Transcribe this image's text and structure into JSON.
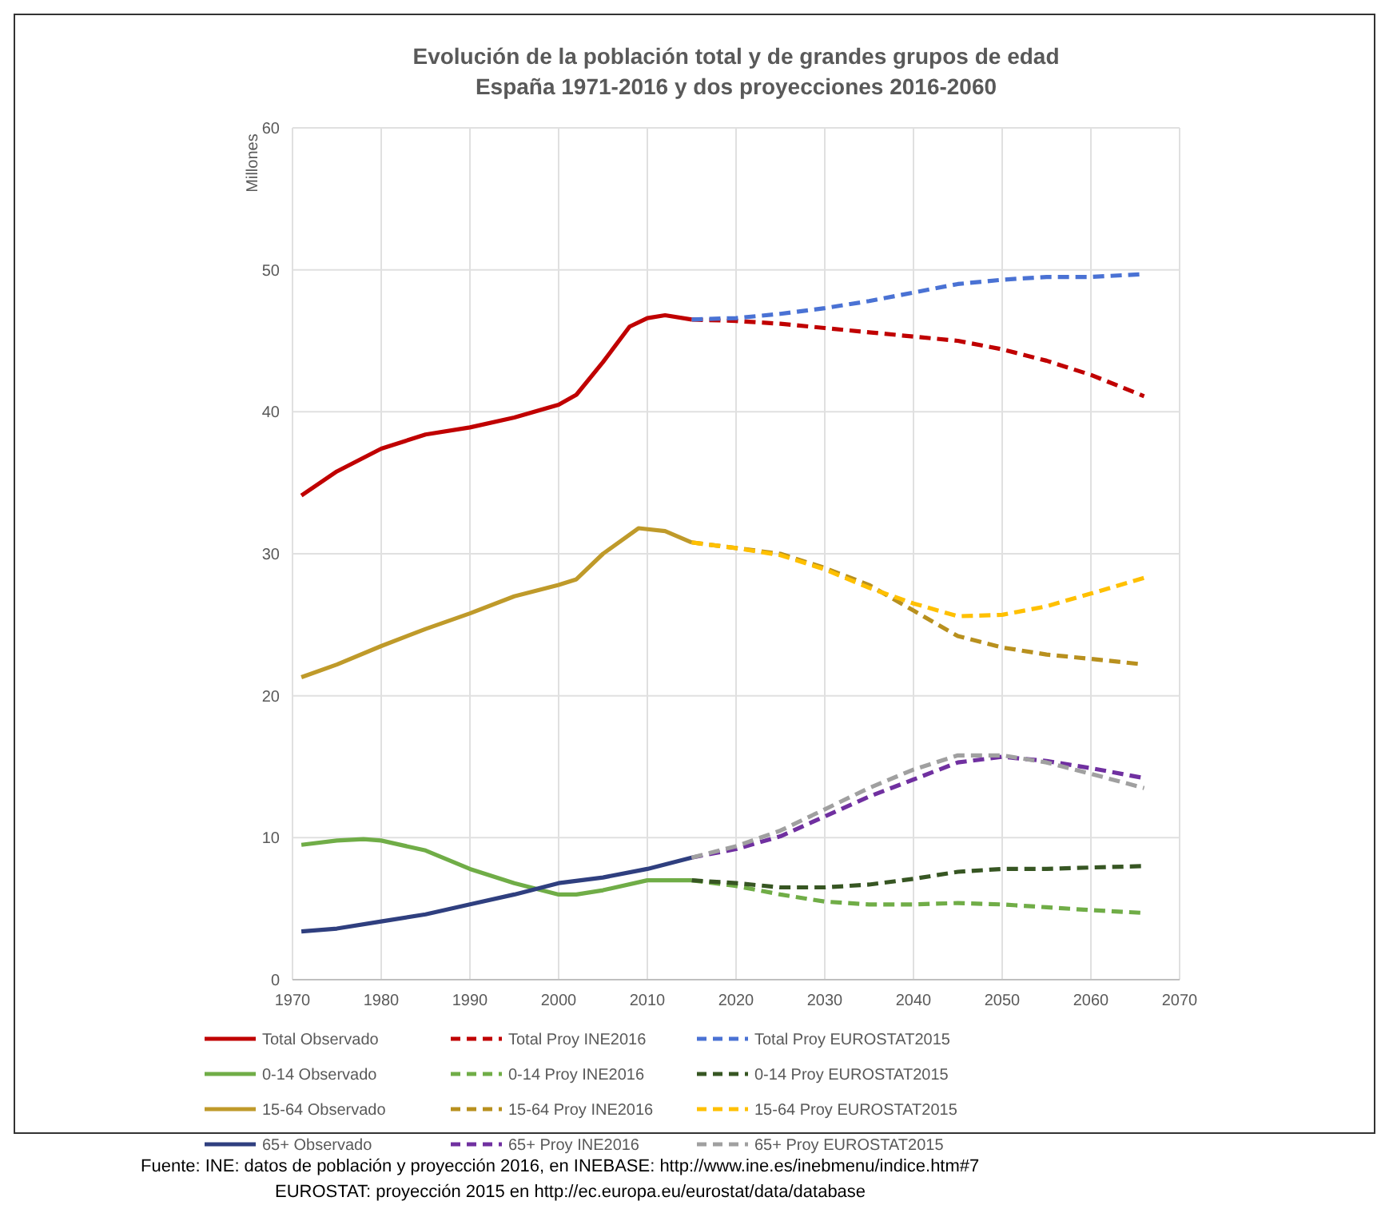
{
  "chart_data": {
    "type": "line",
    "title": "Evolución de la población total y de grandes grupos de edad",
    "subtitle": "España 1971-2016 y  dos proyecciones 2016-2060",
    "ylabel": "Millones",
    "xlim": [
      1970,
      2070
    ],
    "xticks": [
      1970,
      1980,
      1990,
      2000,
      2010,
      2020,
      2030,
      2040,
      2050,
      2060,
      2070
    ],
    "ylim": [
      0,
      60
    ],
    "yticks": [
      0,
      10,
      20,
      30,
      40,
      50,
      60
    ],
    "grid": true,
    "legend": "bottom",
    "marker": "none",
    "series": [
      {
        "name": "Total Observado",
        "color": "#c00000",
        "line_style": "solid",
        "x": [
          1971,
          1975,
          1980,
          1985,
          1990,
          1995,
          2000,
          2002,
          2005,
          2008,
          2010,
          2012,
          2015
        ],
        "values": [
          34.1,
          35.8,
          37.4,
          38.4,
          38.9,
          39.6,
          40.5,
          41.2,
          43.5,
          46.0,
          46.6,
          46.8,
          46.5
        ]
      },
      {
        "name": "Total Proy INE2016",
        "color": "#c00000",
        "line_style": "dashed",
        "x": [
          2015,
          2020,
          2025,
          2030,
          2035,
          2040,
          2045,
          2050,
          2055,
          2060,
          2066
        ],
        "values": [
          46.5,
          46.4,
          46.2,
          45.9,
          45.6,
          45.3,
          45.0,
          44.4,
          43.6,
          42.6,
          41.1
        ]
      },
      {
        "name": "Total Proy EUROSTAT2015",
        "color": "#4a72d4",
        "line_style": "dashed",
        "x": [
          2015,
          2020,
          2025,
          2030,
          2035,
          2040,
          2045,
          2050,
          2055,
          2060,
          2066
        ],
        "values": [
          46.5,
          46.6,
          46.9,
          47.3,
          47.8,
          48.4,
          49.0,
          49.3,
          49.5,
          49.5,
          49.7
        ]
      },
      {
        "name": "0-14 Observado",
        "color": "#70ad47",
        "line_style": "solid",
        "x": [
          1971,
          1975,
          1978,
          1980,
          1985,
          1990,
          1995,
          2000,
          2002,
          2005,
          2010,
          2015
        ],
        "values": [
          9.5,
          9.8,
          9.9,
          9.8,
          9.1,
          7.8,
          6.8,
          6.0,
          6.0,
          6.3,
          7.0,
          7.0
        ]
      },
      {
        "name": "0-14 Proy INE2016",
        "color": "#70ad47",
        "line_style": "dashed",
        "x": [
          2015,
          2020,
          2025,
          2030,
          2035,
          2040,
          2045,
          2050,
          2055,
          2060,
          2066
        ],
        "values": [
          7.0,
          6.6,
          6.0,
          5.5,
          5.3,
          5.3,
          5.4,
          5.3,
          5.1,
          4.9,
          4.7
        ]
      },
      {
        "name": "0-14 Proy EUROSTAT2015",
        "color": "#375623",
        "line_style": "dashed",
        "x": [
          2015,
          2020,
          2025,
          2030,
          2035,
          2040,
          2045,
          2050,
          2055,
          2060,
          2066
        ],
        "values": [
          7.0,
          6.8,
          6.5,
          6.5,
          6.7,
          7.1,
          7.6,
          7.8,
          7.8,
          7.9,
          8.0
        ]
      },
      {
        "name": "15-64 Observado",
        "color": "#bf9a2a",
        "line_style": "solid",
        "x": [
          1971,
          1975,
          1980,
          1985,
          1990,
          1995,
          2000,
          2002,
          2005,
          2009,
          2012,
          2015
        ],
        "values": [
          21.3,
          22.2,
          23.5,
          24.7,
          25.8,
          27.0,
          27.8,
          28.2,
          30.0,
          31.8,
          31.6,
          30.8
        ]
      },
      {
        "name": "15-64 Proy INE2016",
        "color": "#b8901e",
        "line_style": "dashed",
        "x": [
          2015,
          2020,
          2025,
          2030,
          2035,
          2040,
          2045,
          2050,
          2055,
          2060,
          2066
        ],
        "values": [
          30.8,
          30.4,
          30.0,
          29.0,
          27.8,
          26.0,
          24.2,
          23.4,
          22.9,
          22.6,
          22.2
        ]
      },
      {
        "name": "15-64 Proy EUROSTAT2015",
        "color": "#ffc000",
        "line_style": "dashed",
        "x": [
          2015,
          2020,
          2025,
          2030,
          2035,
          2040,
          2045,
          2050,
          2055,
          2060,
          2066
        ],
        "values": [
          30.8,
          30.4,
          29.9,
          28.9,
          27.6,
          26.5,
          25.6,
          25.7,
          26.3,
          27.2,
          28.3
        ]
      },
      {
        "name": "65+ Observado",
        "color": "#2f3f7f",
        "line_style": "solid",
        "x": [
          1971,
          1975,
          1980,
          1985,
          1990,
          1995,
          2000,
          2005,
          2010,
          2015
        ],
        "values": [
          3.4,
          3.6,
          4.1,
          4.6,
          5.3,
          6.0,
          6.8,
          7.2,
          7.8,
          8.6
        ]
      },
      {
        "name": "65+ Proy INE2016",
        "color": "#7030a0",
        "line_style": "dashed",
        "x": [
          2015,
          2020,
          2025,
          2030,
          2035,
          2040,
          2045,
          2050,
          2055,
          2060,
          2066
        ],
        "values": [
          8.6,
          9.2,
          10.1,
          11.5,
          12.9,
          14.1,
          15.3,
          15.7,
          15.4,
          14.9,
          14.2
        ]
      },
      {
        "name": "65+ Proy EUROSTAT2015",
        "color": "#a0a0a0",
        "line_style": "dashed",
        "x": [
          2015,
          2020,
          2025,
          2030,
          2035,
          2040,
          2045,
          2050,
          2055,
          2060,
          2066
        ],
        "values": [
          8.6,
          9.4,
          10.5,
          12.0,
          13.5,
          14.8,
          15.8,
          15.8,
          15.3,
          14.5,
          13.5
        ]
      }
    ],
    "annotations": [
      "Fuente: INE: datos de población y proyección 2016, en INEBASE: http://www.ine.es/inebmenu/indice.htm#7",
      "EUROSTAT: proyección 2015 en http://ec.europa.eu/eurostat/data/database"
    ]
  }
}
